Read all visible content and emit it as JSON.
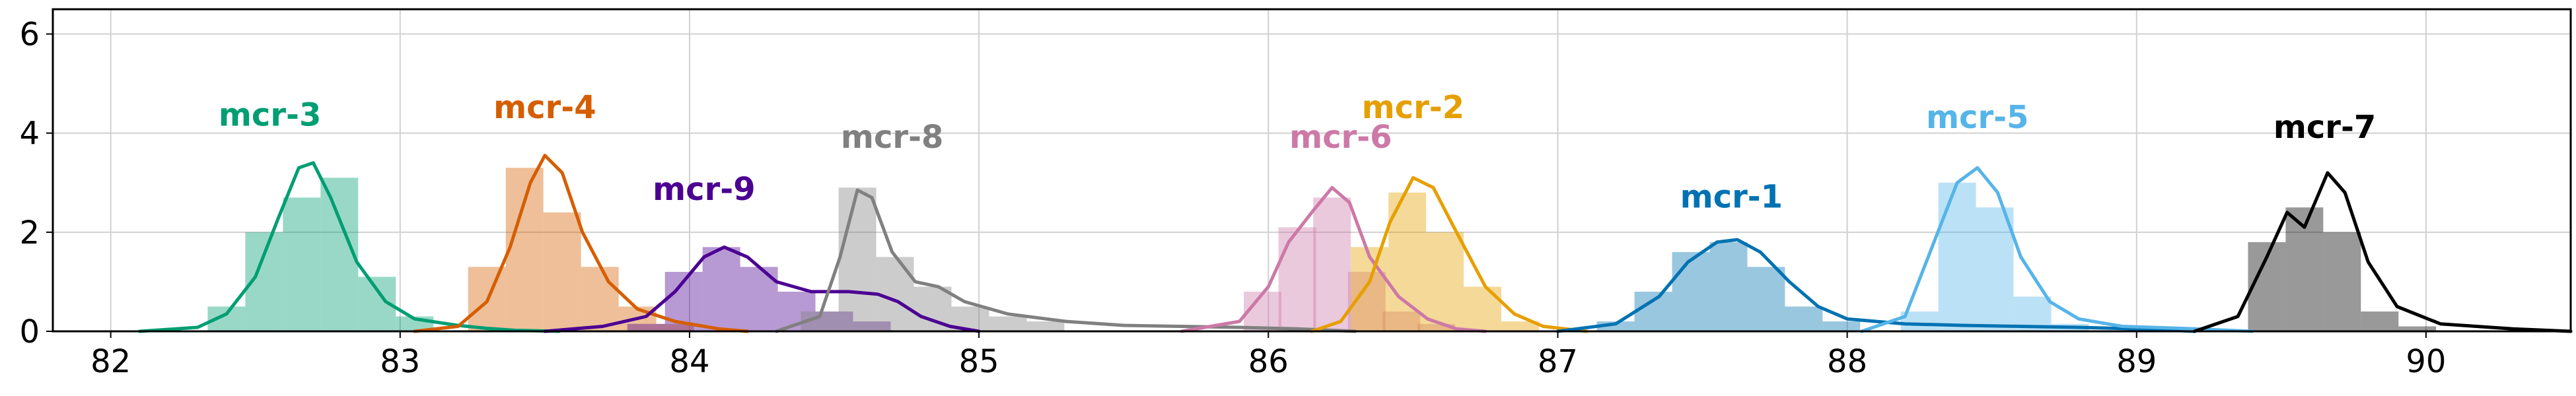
{
  "chart_data": {
    "type": "area",
    "title": "",
    "xlabel": "",
    "ylabel": "",
    "xlim": [
      81.8,
      90.5
    ],
    "ylim": [
      0,
      6.5
    ],
    "xticks": [
      82,
      83,
      84,
      85,
      86,
      87,
      88,
      89,
      90
    ],
    "yticks": [
      0,
      2,
      4,
      6
    ],
    "grid": true,
    "legend": "none",
    "series": [
      {
        "name": "mcr-3",
        "color": "#009E73",
        "label_pos": [
          82.55,
          4.15
        ],
        "hist_bins": [
          [
            82.4,
            0.5
          ],
          [
            82.53,
            2.0
          ],
          [
            82.66,
            2.7
          ],
          [
            82.79,
            3.1
          ],
          [
            82.92,
            1.1
          ],
          [
            83.05,
            0.3
          ]
        ],
        "curve": [
          [
            82.1,
            0.0
          ],
          [
            82.3,
            0.08
          ],
          [
            82.4,
            0.35
          ],
          [
            82.5,
            1.1
          ],
          [
            82.58,
            2.3
          ],
          [
            82.65,
            3.3
          ],
          [
            82.7,
            3.4
          ],
          [
            82.76,
            2.7
          ],
          [
            82.85,
            1.4
          ],
          [
            82.95,
            0.6
          ],
          [
            83.05,
            0.25
          ],
          [
            83.2,
            0.12
          ],
          [
            83.3,
            0.06
          ],
          [
            83.4,
            0.02
          ],
          [
            83.55,
            0.0
          ]
        ]
      },
      {
        "name": "mcr-4",
        "color": "#D55E00",
        "label_pos": [
          83.5,
          4.3
        ],
        "hist_bins": [
          [
            83.3,
            1.3
          ],
          [
            83.43,
            3.3
          ],
          [
            83.56,
            2.4
          ],
          [
            83.69,
            1.3
          ],
          [
            83.82,
            0.5
          ],
          [
            83.95,
            0.15
          ]
        ],
        "curve": [
          [
            83.05,
            0.0
          ],
          [
            83.2,
            0.1
          ],
          [
            83.3,
            0.6
          ],
          [
            83.38,
            1.7
          ],
          [
            83.45,
            3.0
          ],
          [
            83.5,
            3.55
          ],
          [
            83.56,
            3.2
          ],
          [
            83.63,
            2.0
          ],
          [
            83.72,
            1.0
          ],
          [
            83.82,
            0.45
          ],
          [
            83.95,
            0.2
          ],
          [
            84.1,
            0.05
          ],
          [
            84.2,
            0.0
          ]
        ]
      },
      {
        "name": "mcr-9",
        "color": "#4B0092",
        "label_pos": [
          84.05,
          2.65
        ],
        "hist_bins": [
          [
            83.85,
            0.15
          ],
          [
            83.98,
            1.2
          ],
          [
            84.11,
            1.7
          ],
          [
            84.24,
            1.3
          ],
          [
            84.37,
            0.8
          ],
          [
            84.5,
            0.4
          ],
          [
            84.63,
            0.2
          ]
        ],
        "curve": [
          [
            83.5,
            0.0
          ],
          [
            83.7,
            0.1
          ],
          [
            83.85,
            0.3
          ],
          [
            83.95,
            0.8
          ],
          [
            84.05,
            1.5
          ],
          [
            84.12,
            1.7
          ],
          [
            84.2,
            1.5
          ],
          [
            84.3,
            1.0
          ],
          [
            84.42,
            0.8
          ],
          [
            84.55,
            0.8
          ],
          [
            84.65,
            0.75
          ],
          [
            84.72,
            0.6
          ],
          [
            84.8,
            0.3
          ],
          [
            84.9,
            0.1
          ],
          [
            85.0,
            0.0
          ]
        ]
      },
      {
        "name": "mcr-8",
        "color": "#808080",
        "label_pos": [
          84.7,
          3.7
        ],
        "hist_bins": [
          [
            84.45,
            0.4
          ],
          [
            84.58,
            2.9
          ],
          [
            84.71,
            1.5
          ],
          [
            84.84,
            0.9
          ],
          [
            84.97,
            0.5
          ],
          [
            85.1,
            0.3
          ],
          [
            85.23,
            0.2
          ]
        ],
        "curve": [
          [
            84.3,
            0.0
          ],
          [
            84.45,
            0.3
          ],
          [
            84.52,
            1.5
          ],
          [
            84.58,
            2.85
          ],
          [
            84.63,
            2.7
          ],
          [
            84.7,
            1.6
          ],
          [
            84.78,
            1.0
          ],
          [
            84.86,
            0.9
          ],
          [
            84.95,
            0.6
          ],
          [
            85.1,
            0.35
          ],
          [
            85.3,
            0.2
          ],
          [
            85.5,
            0.12
          ],
          [
            85.7,
            0.1
          ],
          [
            85.9,
            0.08
          ],
          [
            86.1,
            0.05
          ],
          [
            86.3,
            0.0
          ]
        ]
      },
      {
        "name": "mcr-6",
        "color": "#CC79A7",
        "label_pos": [
          86.25,
          3.7
        ],
        "hist_bins": [
          [
            85.98,
            0.8
          ],
          [
            86.1,
            2.1
          ],
          [
            86.22,
            2.7
          ],
          [
            86.34,
            1.2
          ],
          [
            86.46,
            0.4
          ],
          [
            86.58,
            0.15
          ]
        ],
        "curve": [
          [
            85.7,
            0.0
          ],
          [
            85.9,
            0.2
          ],
          [
            86.0,
            0.9
          ],
          [
            86.07,
            1.8
          ],
          [
            86.15,
            2.4
          ],
          [
            86.22,
            2.9
          ],
          [
            86.28,
            2.6
          ],
          [
            86.35,
            1.5
          ],
          [
            86.45,
            0.7
          ],
          [
            86.55,
            0.25
          ],
          [
            86.65,
            0.05
          ],
          [
            86.75,
            0.0
          ]
        ]
      },
      {
        "name": "mcr-2",
        "color": "#E69F00",
        "label_pos": [
          86.5,
          4.3
        ],
        "hist_bins": [
          [
            86.35,
            1.7
          ],
          [
            86.48,
            2.8
          ],
          [
            86.61,
            2.0
          ],
          [
            86.74,
            0.9
          ],
          [
            86.87,
            0.2
          ]
        ],
        "curve": [
          [
            86.15,
            0.0
          ],
          [
            86.25,
            0.2
          ],
          [
            86.35,
            1.0
          ],
          [
            86.42,
            2.2
          ],
          [
            86.5,
            3.1
          ],
          [
            86.57,
            2.9
          ],
          [
            86.65,
            2.0
          ],
          [
            86.75,
            0.9
          ],
          [
            86.85,
            0.35
          ],
          [
            86.95,
            0.1
          ],
          [
            87.1,
            0.0
          ]
        ]
      },
      {
        "name": "mcr-1",
        "color": "#0072B2",
        "label_pos": [
          87.6,
          2.5
        ],
        "hist_bins": [
          [
            87.2,
            0.2
          ],
          [
            87.33,
            0.8
          ],
          [
            87.46,
            1.6
          ],
          [
            87.59,
            1.8
          ],
          [
            87.72,
            1.3
          ],
          [
            87.85,
            0.5
          ],
          [
            87.98,
            0.2
          ]
        ],
        "curve": [
          [
            87.0,
            0.0
          ],
          [
            87.2,
            0.15
          ],
          [
            87.35,
            0.7
          ],
          [
            87.45,
            1.4
          ],
          [
            87.55,
            1.8
          ],
          [
            87.62,
            1.85
          ],
          [
            87.7,
            1.6
          ],
          [
            87.8,
            1.0
          ],
          [
            87.9,
            0.5
          ],
          [
            88.0,
            0.25
          ],
          [
            88.2,
            0.15
          ],
          [
            88.4,
            0.12
          ],
          [
            88.6,
            0.1
          ],
          [
            88.8,
            0.08
          ],
          [
            89.0,
            0.05
          ],
          [
            89.2,
            0.0
          ]
        ]
      },
      {
        "name": "mcr-5",
        "color": "#56B4E9",
        "label_pos": [
          88.45,
          4.1
        ],
        "hist_bins": [
          [
            88.25,
            0.4
          ],
          [
            88.38,
            3.0
          ],
          [
            88.51,
            2.5
          ],
          [
            88.64,
            0.7
          ],
          [
            88.77,
            0.15
          ]
        ],
        "curve": [
          [
            88.05,
            0.0
          ],
          [
            88.2,
            0.3
          ],
          [
            88.3,
            1.8
          ],
          [
            88.38,
            3.0
          ],
          [
            88.45,
            3.3
          ],
          [
            88.52,
            2.8
          ],
          [
            88.6,
            1.5
          ],
          [
            88.7,
            0.6
          ],
          [
            88.8,
            0.25
          ],
          [
            88.95,
            0.1
          ],
          [
            89.2,
            0.05
          ],
          [
            89.4,
            0.0
          ]
        ]
      },
      {
        "name": "mcr-7",
        "color": "#000000",
        "label_pos": [
          89.65,
          3.9
        ],
        "hist_bins": [
          [
            89.45,
            1.8
          ],
          [
            89.58,
            2.5
          ],
          [
            89.71,
            2.0
          ],
          [
            89.84,
            0.4
          ],
          [
            89.97,
            0.1
          ]
        ],
        "curve": [
          [
            89.2,
            0.0
          ],
          [
            89.35,
            0.3
          ],
          [
            89.45,
            1.5
          ],
          [
            89.52,
            2.4
          ],
          [
            89.58,
            2.1
          ],
          [
            89.66,
            3.2
          ],
          [
            89.72,
            2.8
          ],
          [
            89.8,
            1.4
          ],
          [
            89.9,
            0.5
          ],
          [
            90.05,
            0.15
          ],
          [
            90.3,
            0.05
          ],
          [
            90.5,
            0.0
          ]
        ]
      }
    ]
  }
}
